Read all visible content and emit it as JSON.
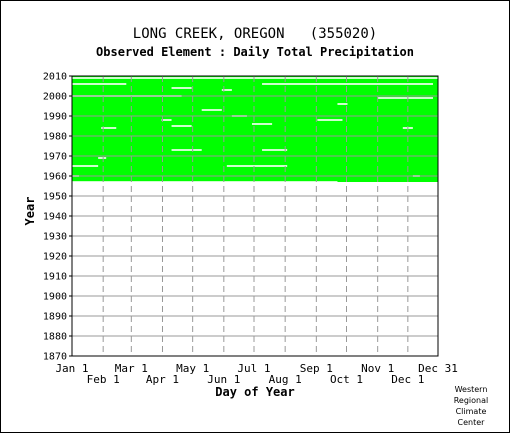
{
  "title": "LONG CREEK, OREGON   (355020)",
  "subtitle": "Observed Element : Daily Total Precipitation",
  "credit": [
    "Western",
    "Regional",
    "Climate",
    "Center"
  ],
  "colors": {
    "data": "#00ff00",
    "grid": "#999999",
    "axis": "#000000",
    "background": "#ffffff"
  },
  "chart_data": {
    "type": "heatmap",
    "xlabel": "Day of Year",
    "ylabel": "Year",
    "x_ticks_top": [
      "Jan 1",
      "Mar 1",
      "May 1",
      "Jul 1",
      "Sep 1",
      "Nov 1",
      "Dec 31"
    ],
    "x_ticks_bottom": [
      "Feb 1",
      "Apr 1",
      "Jun 1",
      "Aug 1",
      "Oct 1",
      "Dec 1"
    ],
    "x_tick_days_top": [
      1,
      60,
      121,
      182,
      244,
      305,
      365
    ],
    "x_tick_days_bottom": [
      32,
      91,
      152,
      213,
      274,
      335
    ],
    "xlim": [
      1,
      365
    ],
    "ylim": [
      1870,
      2010
    ],
    "y_ticks": [
      1870,
      1880,
      1890,
      1900,
      1910,
      1920,
      1930,
      1940,
      1950,
      1960,
      1970,
      1980,
      1990,
      2000,
      2010
    ],
    "grid": true,
    "coverage": {
      "year_start": 1957,
      "year_end": 2010,
      "description": "near-complete daily record with scattered missing days"
    },
    "missing": [
      {
        "year": 2009,
        "day_start": 1,
        "day_end": 365
      },
      {
        "year": 2006,
        "day_start": 1,
        "day_end": 55
      },
      {
        "year": 2006,
        "day_start": 190,
        "day_end": 360
      },
      {
        "year": 2004,
        "day_start": 100,
        "day_end": 120
      },
      {
        "year": 2003,
        "day_start": 150,
        "day_end": 160
      },
      {
        "year": 2000,
        "day_start": 1,
        "day_end": 110
      },
      {
        "year": 1999,
        "day_start": 305,
        "day_end": 360
      },
      {
        "year": 1996,
        "day_start": 265,
        "day_end": 275
      },
      {
        "year": 1993,
        "day_start": 130,
        "day_end": 150
      },
      {
        "year": 1990,
        "day_start": 160,
        "day_end": 175
      },
      {
        "year": 1988,
        "day_start": 245,
        "day_end": 270
      },
      {
        "year": 1988,
        "day_start": 90,
        "day_end": 100
      },
      {
        "year": 1986,
        "day_start": 180,
        "day_end": 200
      },
      {
        "year": 1985,
        "day_start": 100,
        "day_end": 120
      },
      {
        "year": 1984,
        "day_start": 30,
        "day_end": 45
      },
      {
        "year": 1984,
        "day_start": 330,
        "day_end": 340
      },
      {
        "year": 1973,
        "day_start": 100,
        "day_end": 130
      },
      {
        "year": 1973,
        "day_start": 190,
        "day_end": 215
      },
      {
        "year": 1969,
        "day_start": 27,
        "day_end": 35
      },
      {
        "year": 1965,
        "day_start": 1,
        "day_end": 27
      },
      {
        "year": 1965,
        "day_start": 155,
        "day_end": 215
      },
      {
        "year": 1960,
        "day_start": 1,
        "day_end": 8
      },
      {
        "year": 1960,
        "day_start": 340,
        "day_end": 347
      },
      {
        "year": 1957,
        "day_start": 1,
        "day_end": 265
      }
    ]
  }
}
